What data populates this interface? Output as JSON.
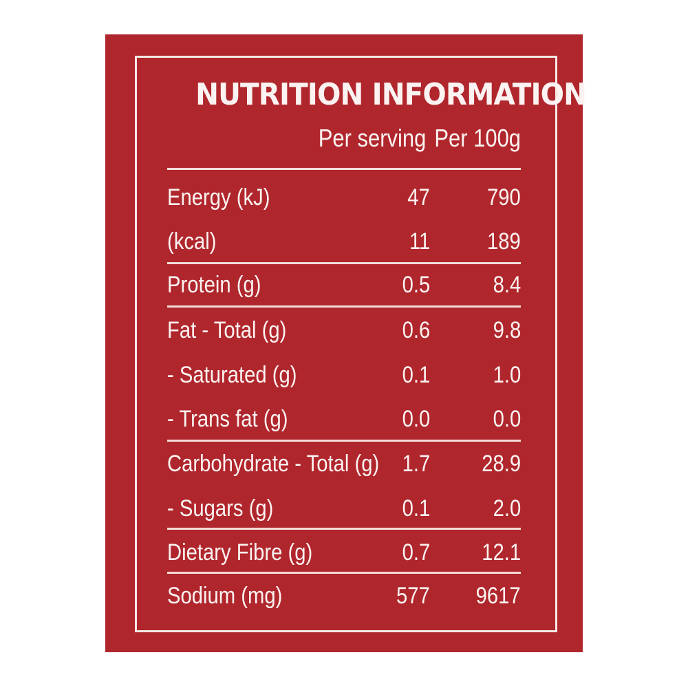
{
  "panel": {
    "title": "NUTRITION INFORMATION",
    "columns": {
      "per_serving": "Per serving",
      "per_100g": "Per 100g"
    },
    "rows": [
      {
        "name": "Energy (kJ)",
        "per_serving": "47",
        "per_100g": "790"
      },
      {
        "name": "(kcal)",
        "per_serving": "11",
        "per_100g": "189"
      },
      {
        "name": "Protein (g)",
        "per_serving": "0.5",
        "per_100g": "8.4"
      },
      {
        "name": "Fat - Total (g)",
        "per_serving": "0.6",
        "per_100g": "9.8"
      },
      {
        "name": "- Saturated (g)",
        "per_serving": "0.1",
        "per_100g": "1.0"
      },
      {
        "name": "- Trans fat (g)",
        "per_serving": "0.0",
        "per_100g": "0.0"
      },
      {
        "name": "Carbohydrate - Total (g)",
        "per_serving": "1.7",
        "per_100g": "28.9"
      },
      {
        "name": "- Sugars (g)",
        "per_serving": "0.1",
        "per_100g": "2.0"
      },
      {
        "name": "Dietary Fibre (g)",
        "per_serving": "0.7",
        "per_100g": "12.1"
      },
      {
        "name": "Sodium (mg)",
        "per_serving": "577",
        "per_100g": "9617"
      }
    ]
  },
  "colors": {
    "background": "#b0262d",
    "text": "#fbf3f1"
  }
}
